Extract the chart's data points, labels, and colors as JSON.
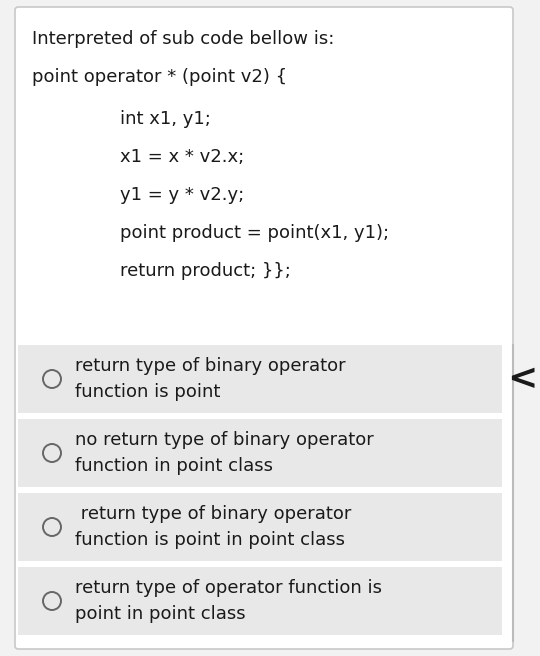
{
  "bg_color": "#f2f2f2",
  "card_bg": "#ffffff",
  "card_border": "#c8c8c8",
  "option_bg": "#e8e8e8",
  "text_color": "#1a1a1a",
  "circle_color": "#666666",
  "title_text": "Interpreted of sub code bellow is:",
  "code_line0": "point operator * (point v2) {",
  "code_lines": [
    "int x1, y1;",
    "x1 = x * v2.x;",
    "y1 = y * v2.y;",
    "point product = point(x1, y1);",
    "return product; }};"
  ],
  "options": [
    [
      "return type of binary operator",
      "function is point"
    ],
    [
      "no return type of binary operator",
      "function in point class"
    ],
    [
      " return type of binary operator",
      "function is point in point class"
    ],
    [
      "return type of operator function is",
      "point in point class"
    ]
  ],
  "chevron": "<",
  "font_size": 13,
  "fig_w": 5.4,
  "fig_h": 6.56,
  "dpi": 100
}
